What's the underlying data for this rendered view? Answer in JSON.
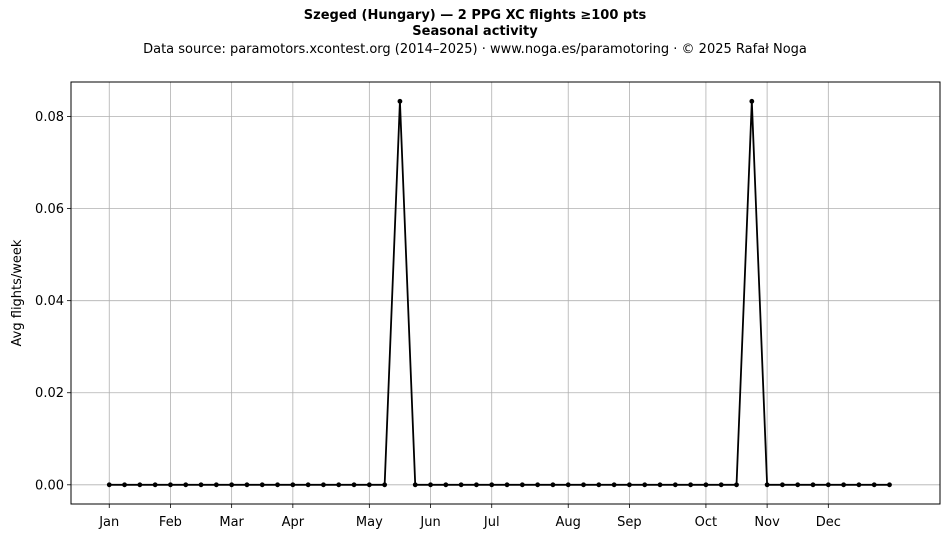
{
  "chart_data": {
    "type": "line",
    "title": "Szeged (Hungary)  —  2 PPG XC flights ≥100 pts",
    "subtitle": "Seasonal activity",
    "source_line": "Data source: paramotors.xcontest.org (2014–2025)  ·  www.noga.es/paramotoring  ·  © 2025 Rafał Noga",
    "xlabel": "",
    "ylabel": "Avg flights/week",
    "x": [
      1,
      2,
      3,
      4,
      5,
      6,
      7,
      8,
      9,
      10,
      11,
      12,
      13,
      14,
      15,
      16,
      17,
      18,
      19,
      20,
      21,
      22,
      23,
      24,
      25,
      26,
      27,
      28,
      29,
      30,
      31,
      32,
      33,
      34,
      35,
      36,
      37,
      38,
      39,
      40,
      41,
      42,
      43,
      44,
      45,
      46,
      47,
      48,
      49,
      50,
      51,
      52
    ],
    "series": [
      {
        "color": "#000000",
        "values": [
          0,
          0,
          0,
          0,
          0,
          0,
          0,
          0,
          0,
          0,
          0,
          0,
          0,
          0,
          0,
          0,
          0,
          0,
          0,
          0.0833,
          0,
          0,
          0,
          0,
          0,
          0,
          0,
          0,
          0,
          0,
          0,
          0,
          0,
          0,
          0,
          0,
          0,
          0,
          0,
          0,
          0,
          0,
          0.0833,
          0,
          0,
          0,
          0,
          0,
          0,
          0,
          0,
          0
        ]
      }
    ],
    "xticks": [
      {
        "label": "Jan",
        "value": 1
      },
      {
        "label": "Feb",
        "value": 5
      },
      {
        "label": "Mar",
        "value": 9
      },
      {
        "label": "Apr",
        "value": 13
      },
      {
        "label": "May",
        "value": 18
      },
      {
        "label": "Jun",
        "value": 22
      },
      {
        "label": "Jul",
        "value": 26
      },
      {
        "label": "Aug",
        "value": 31
      },
      {
        "label": "Sep",
        "value": 35
      },
      {
        "label": "Oct",
        "value": 40
      },
      {
        "label": "Nov",
        "value": 44
      },
      {
        "label": "Dec",
        "value": 48
      }
    ],
    "yticks": [
      {
        "label": "0.00",
        "value": 0
      },
      {
        "label": "0.02",
        "value": 0.02
      },
      {
        "label": "0.04",
        "value": 0.04
      },
      {
        "label": "0.06",
        "value": 0.06
      },
      {
        "label": "0.08",
        "value": 0.08
      }
    ],
    "xlim": [
      -1.5,
      55.3
    ],
    "ylim": [
      -0.00417,
      0.0875
    ],
    "grid": true,
    "grid_color": "#b0b0b0",
    "legend": "none"
  }
}
